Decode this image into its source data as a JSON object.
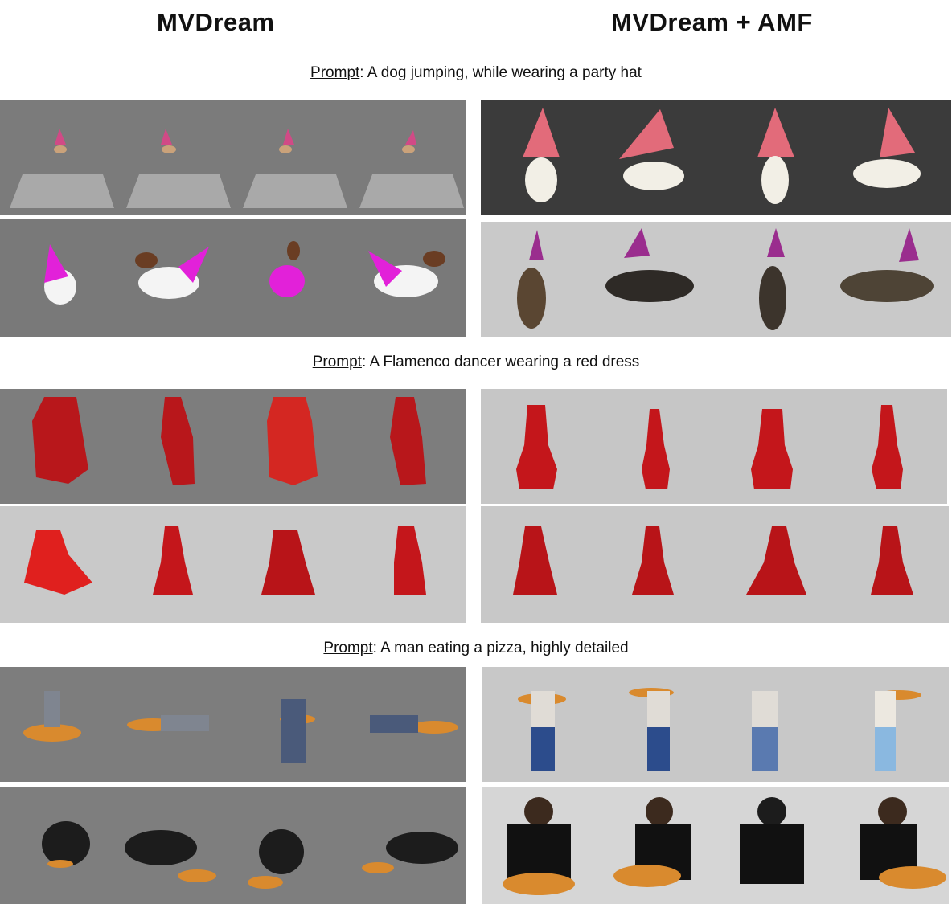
{
  "headers": {
    "left": "MVDream",
    "right": "MVDream + AMF"
  },
  "prompt_prefix": "Prompt",
  "sections": [
    {
      "prompt": ": A dog jumping, while wearing a party hat"
    },
    {
      "prompt": ": A Flamenco dancer wearing a red dress"
    },
    {
      "prompt": ": A man eating a pizza, highly detailed"
    }
  ],
  "colors": {
    "bg_gray": "#7a7a7a",
    "bg_dark": "#3a3a3a",
    "bg_light": "#c8c8c8",
    "hat_pink": "#e0607a",
    "hat_magenta": "#e020d8",
    "hat_purple": "#9a2d8e",
    "dress_red": "#c8171c",
    "pizza": "#d98a2e"
  }
}
